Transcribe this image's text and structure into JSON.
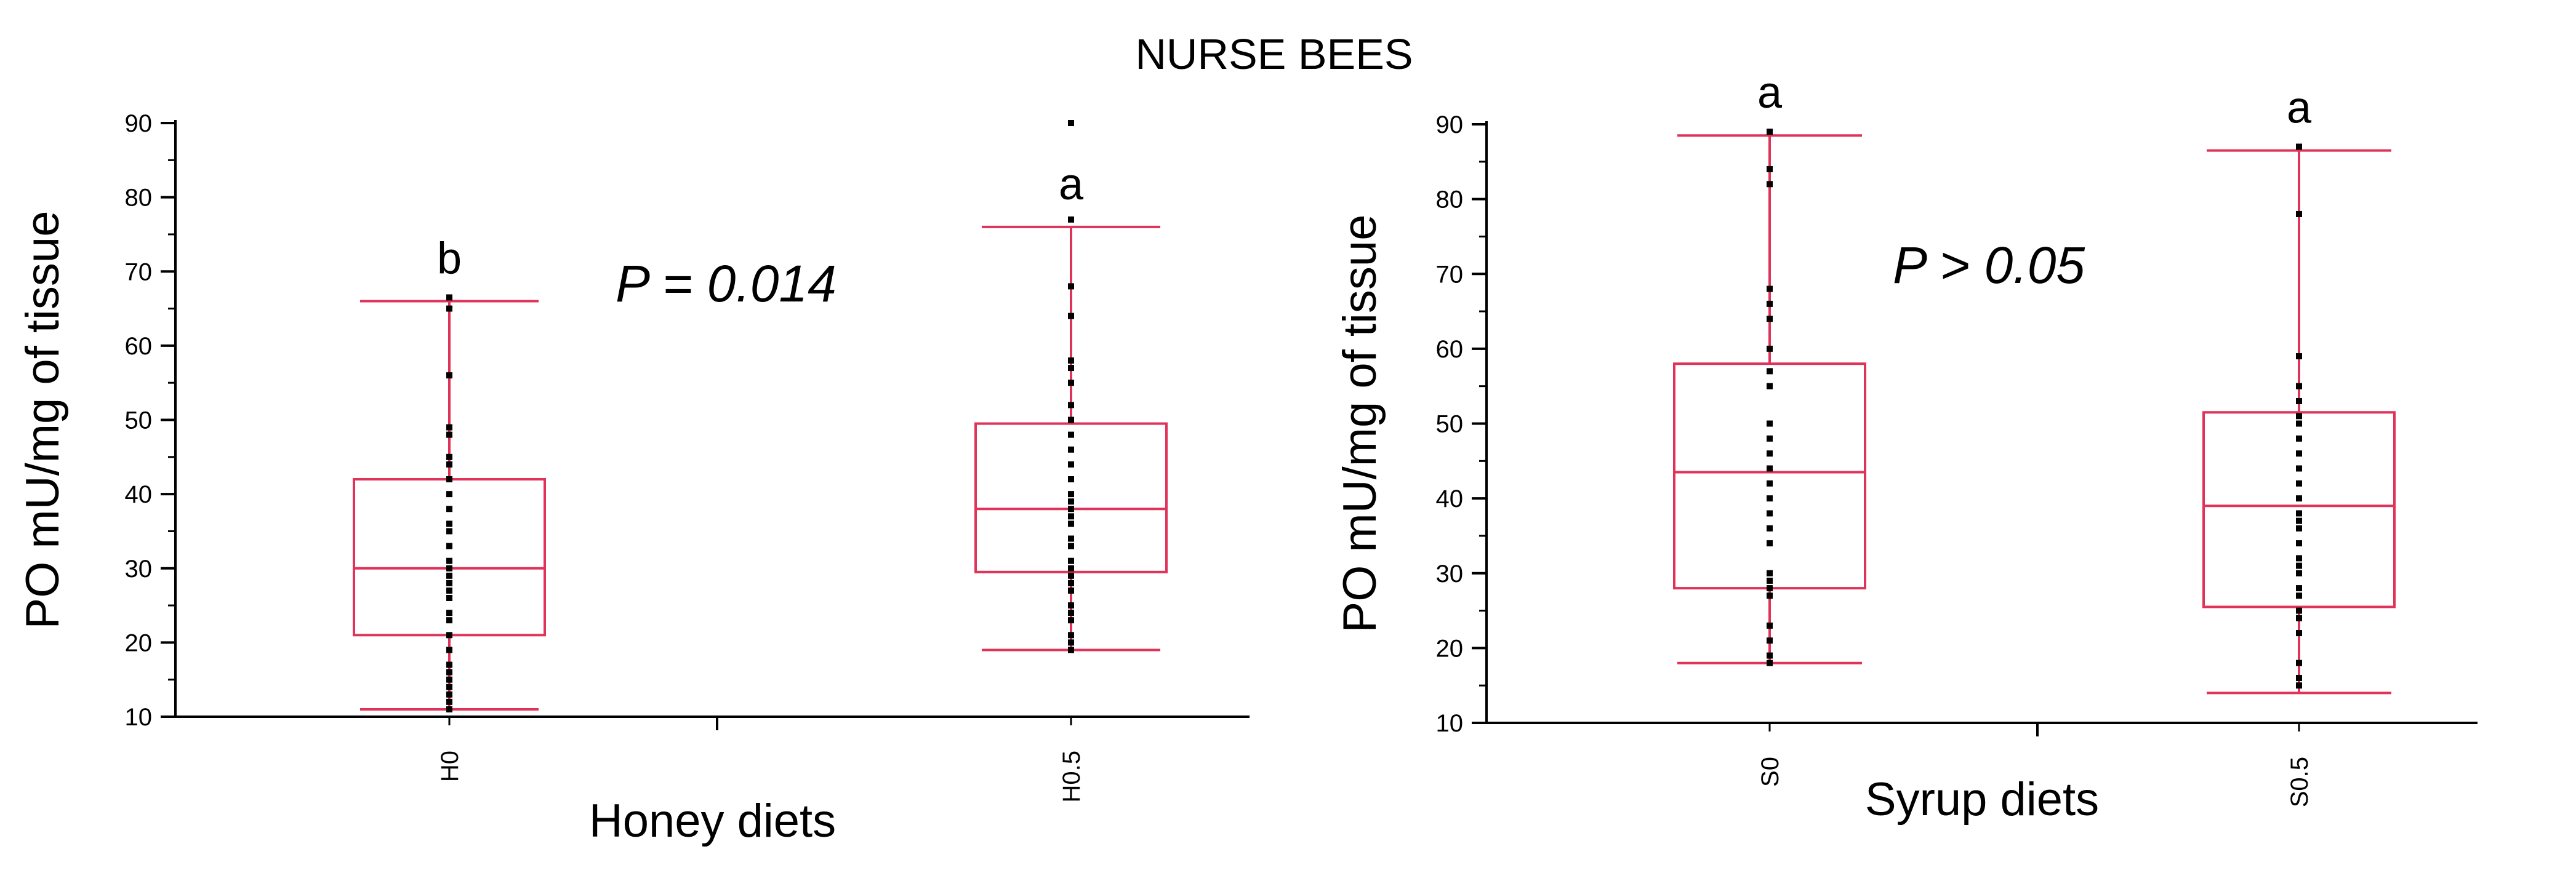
{
  "title": "NURSE BEES",
  "colors": {
    "box": "#e0335a",
    "points": "#000000",
    "axis": "#000000"
  },
  "chart_data": [
    {
      "type": "box",
      "xlabel": "Honey diets",
      "ylabel": "PO mU/mg of tissue",
      "ylim": [
        10,
        90
      ],
      "yticks": [
        "10",
        "20",
        "30",
        "40",
        "50",
        "60",
        "70",
        "80",
        "90"
      ],
      "annotation": "P = 0.014",
      "grid": false,
      "groups": [
        {
          "label": "H0",
          "letter": "b",
          "whisker_low": 11,
          "q1": 21,
          "median": 30,
          "q3": 42,
          "whisker_high": 66,
          "points": [
            66.5,
            65,
            56,
            49,
            48,
            45,
            44,
            42,
            40,
            38,
            36,
            35,
            33,
            31,
            30,
            29,
            28,
            27,
            26,
            24,
            23,
            21,
            19,
            17,
            16,
            15,
            14,
            13,
            12,
            11
          ]
        },
        {
          "label": "H0.5",
          "letter": "a",
          "whisker_low": 19,
          "q1": 29.5,
          "median": 38,
          "q3": 49.5,
          "whisker_high": 76,
          "points": [
            90,
            77,
            68,
            64,
            58,
            57,
            55,
            52,
            50,
            48,
            46,
            44,
            42,
            40,
            39,
            38,
            37,
            36,
            34,
            33,
            31,
            30,
            29,
            28,
            27,
            25,
            24,
            23,
            21,
            20,
            19
          ]
        }
      ]
    },
    {
      "type": "box",
      "xlabel": "Syrup diets",
      "ylabel": "PO mU/mg of tissue",
      "ylim": [
        10,
        90
      ],
      "yticks": [
        "10",
        "20",
        "30",
        "40",
        "50",
        "60",
        "70",
        "80",
        "90"
      ],
      "annotation": "P > 0.05",
      "grid": false,
      "groups": [
        {
          "label": "S0",
          "letter": "a",
          "whisker_low": 18,
          "q1": 28,
          "median": 43.5,
          "q3": 58,
          "whisker_high": 88.5,
          "points": [
            89,
            84,
            82,
            68,
            66,
            64,
            60,
            57,
            55,
            50,
            48,
            46,
            44,
            42,
            40,
            38,
            36,
            34,
            30,
            29,
            28,
            27,
            23,
            21,
            19,
            18
          ]
        },
        {
          "label": "S0.5",
          "letter": "a",
          "whisker_low": 14,
          "q1": 25.5,
          "median": 39,
          "q3": 51.5,
          "whisker_high": 86.5,
          "points": [
            87,
            78,
            59,
            55,
            53,
            51,
            50,
            48,
            46,
            44,
            42,
            40,
            38,
            37,
            36,
            34,
            32,
            31,
            30,
            28,
            27,
            25,
            24,
            22,
            18,
            16,
            15
          ]
        }
      ]
    }
  ]
}
